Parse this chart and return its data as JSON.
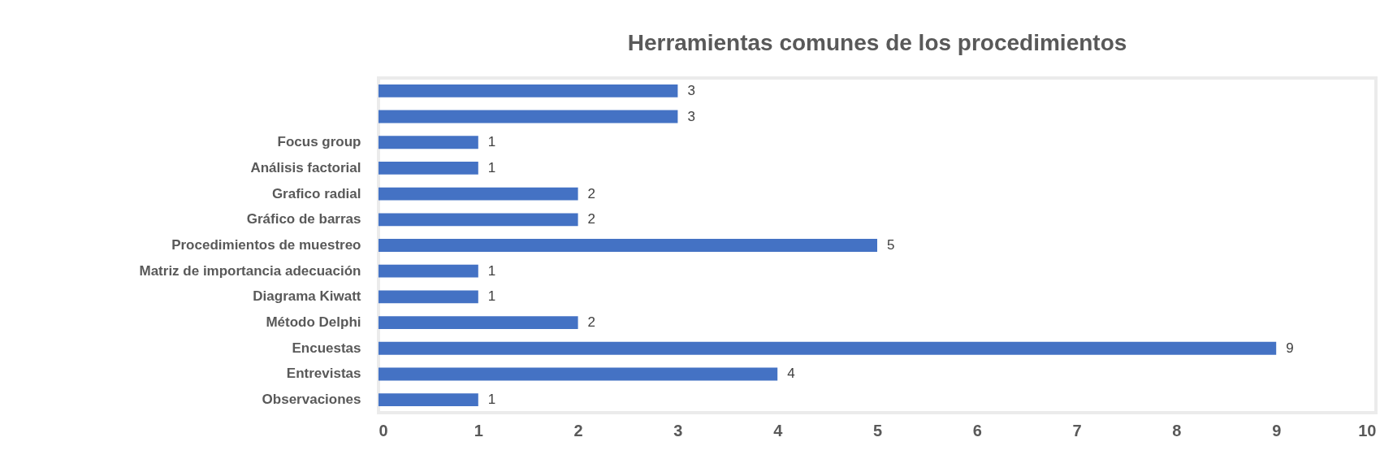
{
  "chart_data": {
    "type": "bar",
    "orientation": "horizontal",
    "title": "Herramientas comunes de los procedimientos",
    "categories": [
      null,
      null,
      "Focus group",
      "Análisis factorial",
      "Grafico radial",
      "Gráfico de barras",
      "Procedimientos de muestreo",
      "Matriz de importancia adecuación",
      "Diagrama Kiwatt",
      "Método Delphi",
      "Encuestas",
      "Entrevistas",
      "Observaciones"
    ],
    "values": [
      3,
      3,
      1,
      1,
      2,
      2,
      5,
      1,
      1,
      2,
      9,
      4,
      1
    ],
    "color": "#4472c4",
    "xlim": [
      0,
      10
    ],
    "xticks": [
      0,
      1,
      2,
      3,
      4,
      5,
      6,
      7,
      8,
      9,
      10
    ],
    "data_labels": true
  }
}
